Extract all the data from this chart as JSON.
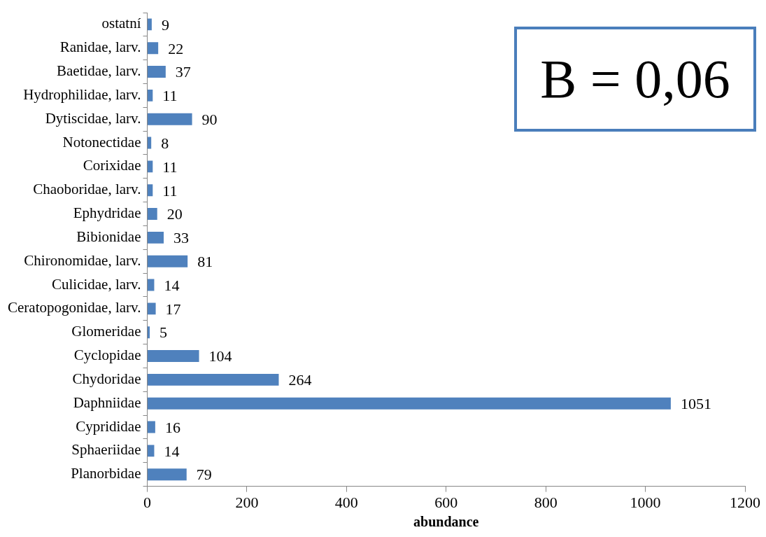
{
  "chart_data": {
    "type": "bar",
    "orientation": "horizontal",
    "xlabel": "abundance",
    "categories": [
      "ostatní",
      "Ranidae, larv.",
      "Baetidae, larv.",
      "Hydrophilidae, larv.",
      "Dytiscidae, larv.",
      "Notonectidae",
      "Corixidae",
      "Chaoboridae, larv.",
      "Ephydridae",
      "Bibionidae",
      "Chironomidae, larv.",
      "Culicidae, larv.",
      "Ceratopogonidae, larv.",
      "Glomeridae",
      "Cyclopidae",
      "Chydoridae",
      "Daphniidae",
      "Cyprididae",
      "Sphaeriidae",
      "Planorbidae"
    ],
    "values": [
      9,
      22,
      37,
      11,
      90,
      8,
      11,
      11,
      20,
      33,
      81,
      14,
      17,
      5,
      104,
      264,
      1051,
      16,
      14,
      79
    ],
    "color": "#4f81bd",
    "xlim": [
      0,
      1200
    ],
    "xticks": [
      0,
      200,
      400,
      600,
      800,
      1000,
      1200
    ],
    "data_labels": true,
    "grid": false,
    "legend": false,
    "annotations": [
      "B = 0,06"
    ]
  }
}
